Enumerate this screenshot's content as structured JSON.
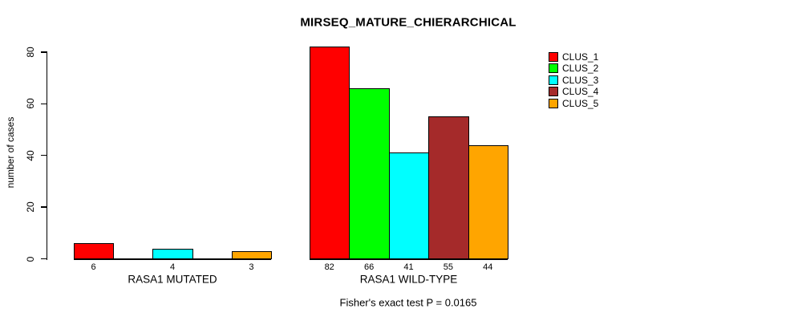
{
  "title": "MIRSEQ_MATURE_CHIERARCHICAL",
  "chart_data": {
    "type": "bar",
    "title": "MIRSEQ_MATURE_CHIERARCHICAL",
    "xlabel": "",
    "ylabel": "number of cases",
    "yticks": [
      0,
      20,
      40,
      60,
      80
    ],
    "ylim": [
      0,
      86
    ],
    "grid": false,
    "legend_position": "top-right",
    "series": [
      {
        "name": "CLUS_1",
        "color": "#FF0000"
      },
      {
        "name": "CLUS_2",
        "color": "#00FF00"
      },
      {
        "name": "CLUS_3",
        "color": "#00FFFF"
      },
      {
        "name": "CLUS_4",
        "color": "#A52A2A"
      },
      {
        "name": "CLUS_5",
        "color": "#FFA500"
      }
    ],
    "groups": [
      {
        "label": "RASA1 MUTATED",
        "values": [
          6,
          0,
          4,
          0,
          3
        ]
      },
      {
        "label": "RASA1 WILD-TYPE",
        "values": [
          82,
          66,
          41,
          55,
          44
        ]
      }
    ],
    "annotation": "Fisher's exact test P = 0.0165"
  }
}
